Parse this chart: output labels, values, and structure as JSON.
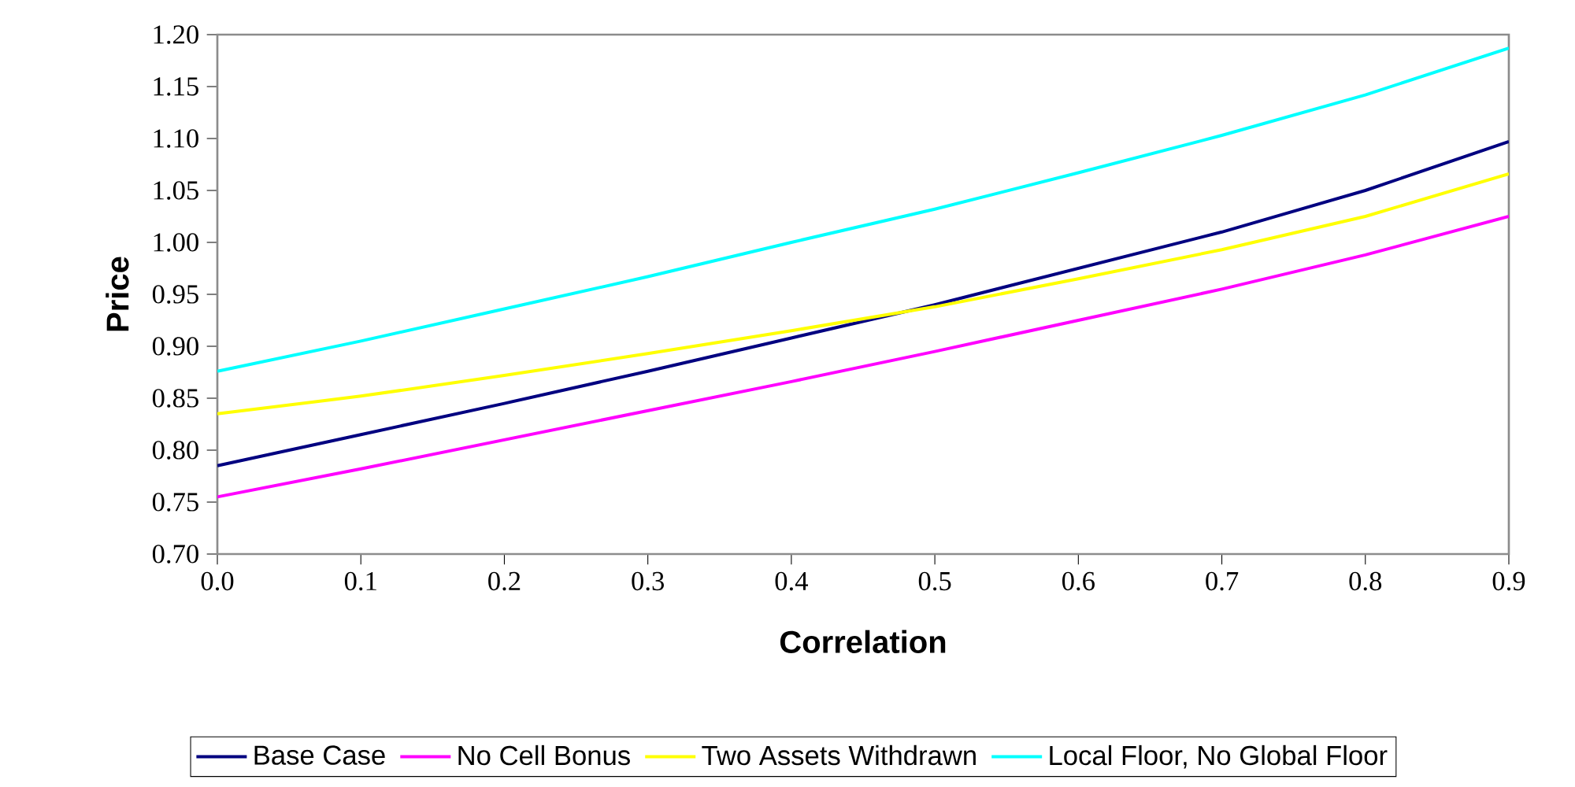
{
  "chart_data": {
    "type": "line",
    "xlabel": "Correlation",
    "ylabel": "Price",
    "x": [
      0.0,
      0.1,
      0.2,
      0.3,
      0.4,
      0.5,
      0.6,
      0.7,
      0.8,
      0.9
    ],
    "series": [
      {
        "name": "Base Case",
        "color": "#000080",
        "values": [
          0.785,
          0.815,
          0.845,
          0.876,
          0.908,
          0.94,
          0.975,
          1.01,
          1.05,
          1.097
        ]
      },
      {
        "name": "No Cell Bonus",
        "color": "#ff00ff",
        "values": [
          0.755,
          0.782,
          0.81,
          0.838,
          0.866,
          0.895,
          0.925,
          0.955,
          0.988,
          1.025
        ]
      },
      {
        "name": "Two Assets Withdrawn",
        "color": "#ffff00",
        "values": [
          0.835,
          0.852,
          0.872,
          0.893,
          0.915,
          0.938,
          0.965,
          0.993,
          1.025,
          1.066
        ]
      },
      {
        "name": "Local Floor, No Global Floor",
        "color": "#00ffff",
        "values": [
          0.876,
          0.905,
          0.936,
          0.967,
          1.0,
          1.032,
          1.067,
          1.103,
          1.142,
          1.187
        ]
      }
    ],
    "xlim": [
      0.0,
      0.9
    ],
    "xticks": [
      {
        "value": 0.0,
        "label": "0.0"
      },
      {
        "value": 0.1,
        "label": "0.1"
      },
      {
        "value": 0.2,
        "label": "0.2"
      },
      {
        "value": 0.3,
        "label": "0.3"
      },
      {
        "value": 0.4,
        "label": "0.4"
      },
      {
        "value": 0.5,
        "label": "0.5"
      },
      {
        "value": 0.6,
        "label": "0.6"
      },
      {
        "value": 0.7,
        "label": "0.7"
      },
      {
        "value": 0.8,
        "label": "0.8"
      },
      {
        "value": 0.9,
        "label": "0.9"
      }
    ],
    "ylim": [
      0.7,
      1.2
    ],
    "yticks": [
      {
        "value": 0.7,
        "label": "0.70"
      },
      {
        "value": 0.75,
        "label": "0.75"
      },
      {
        "value": 0.8,
        "label": "0.80"
      },
      {
        "value": 0.85,
        "label": "0.85"
      },
      {
        "value": 0.9,
        "label": "0.90"
      },
      {
        "value": 0.95,
        "label": "0.95"
      },
      {
        "value": 1.0,
        "label": "1.00"
      },
      {
        "value": 1.05,
        "label": "1.05"
      },
      {
        "value": 1.1,
        "label": "1.10"
      },
      {
        "value": 1.15,
        "label": "1.15"
      },
      {
        "value": 1.2,
        "label": "1.20"
      }
    ],
    "grid": false,
    "legend": "bottom",
    "marker": "none",
    "line_style": "solid"
  }
}
